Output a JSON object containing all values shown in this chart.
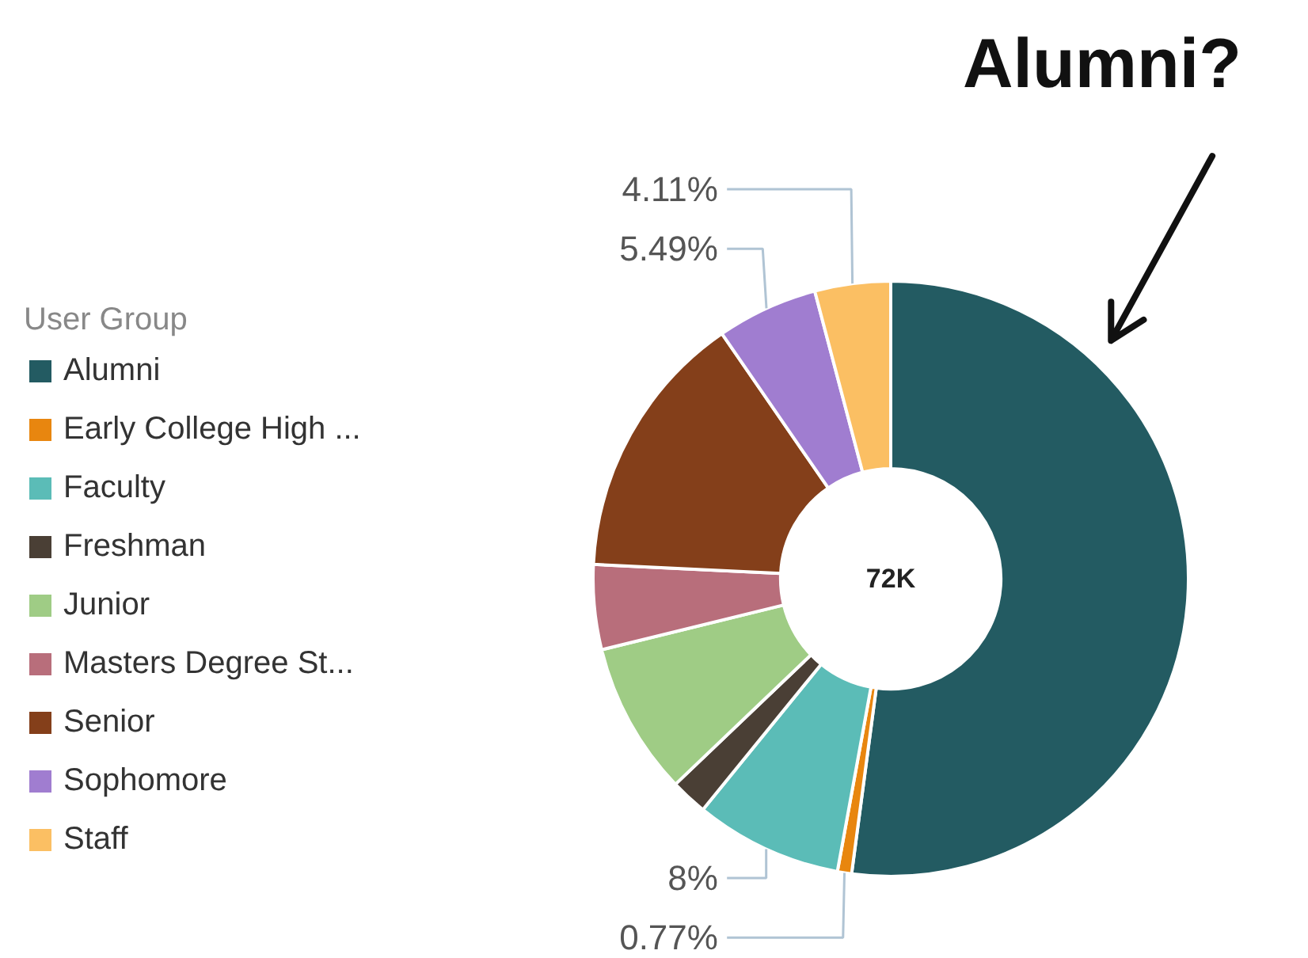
{
  "chart_data": {
    "type": "donut",
    "legend_title": "User Group",
    "categories": [
      "Alumni",
      "Early College High ...",
      "Faculty",
      "Freshman",
      "Junior",
      "Masters Degree St...",
      "Senior",
      "Sophomore",
      "Staff"
    ],
    "values": [
      52.1,
      0.77,
      8,
      2,
      8.3,
      4.6,
      14.63,
      5.49,
      4.11
    ],
    "colors": [
      "#235b62",
      "#e8860f",
      "#5bbcb7",
      "#4a3f35",
      "#9fcc85",
      "#b86e7b",
      "#843f1a",
      "#a07dd0",
      "#fbbf63"
    ],
    "value_labels": [
      null,
      "0.77%",
      "8%",
      null,
      null,
      null,
      null,
      "5.49%",
      "4.11%"
    ],
    "annotations": [
      "72K",
      "Alumni?"
    ],
    "legend": "left"
  }
}
